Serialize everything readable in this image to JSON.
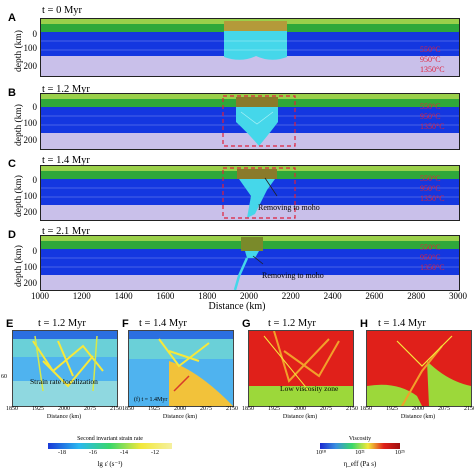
{
  "top_panels": [
    {
      "letter": "A",
      "time": "t = 0 Myr",
      "temps": [
        "550°C",
        "950°C",
        "1350°C"
      ],
      "annotation": ""
    },
    {
      "letter": "B",
      "time": "t = 1.2 Myr",
      "temps": [
        "550°C",
        "950°C",
        "1350°C"
      ],
      "annotation": ""
    },
    {
      "letter": "C",
      "time": "t = 1.4 Myr",
      "temps": [
        "550°C",
        "950°C",
        "1350°C"
      ],
      "annotation": "Removing to moho"
    },
    {
      "letter": "D",
      "time": "t = 2.1 Myr",
      "temps": [
        "550°C",
        "950°C",
        "1350°C"
      ],
      "annotation": "Removing to moho"
    }
  ],
  "top_axis": {
    "ylabel": "depth (km)",
    "yticks": [
      "0",
      "100",
      "200"
    ],
    "xlabel": "Distance (km)",
    "xticks": [
      "1000",
      "1200",
      "1400",
      "1600",
      "1800",
      "2000",
      "2200",
      "2400",
      "2600",
      "2800",
      "3000"
    ]
  },
  "bottom_panels": [
    {
      "letter": "E",
      "time": "t = 1.2 Myr",
      "annotation": "Strain rate localization",
      "inset": ""
    },
    {
      "letter": "F",
      "time": "t = 1.4 Myr",
      "annotation": "",
      "inset": "(f) t = 1.4Myr"
    },
    {
      "letter": "G",
      "time": "t = 1.2 Myr",
      "annotation": "Low viscosity zone",
      "inset": ""
    },
    {
      "letter": "H",
      "time": "t = 1.4 Myr",
      "annotation": "",
      "inset": ""
    }
  ],
  "bottom_axis": {
    "left_tick": "60",
    "xticks": [
      "1850",
      "1925",
      "2000",
      "2075",
      "2150"
    ],
    "xlabel": "Distance (km)"
  },
  "colorbar_strain": {
    "title": "Second invariant strain rate",
    "ticks": [
      "-18",
      "-16",
      "-14",
      "-12"
    ],
    "label": "lg ε̇ (s⁻¹)"
  },
  "colorbar_visc": {
    "title": "Viscosity",
    "ticks": [
      "10¹⁸",
      "10²¹",
      "10²⁵"
    ],
    "label": "η_eff (Pa s)"
  }
}
